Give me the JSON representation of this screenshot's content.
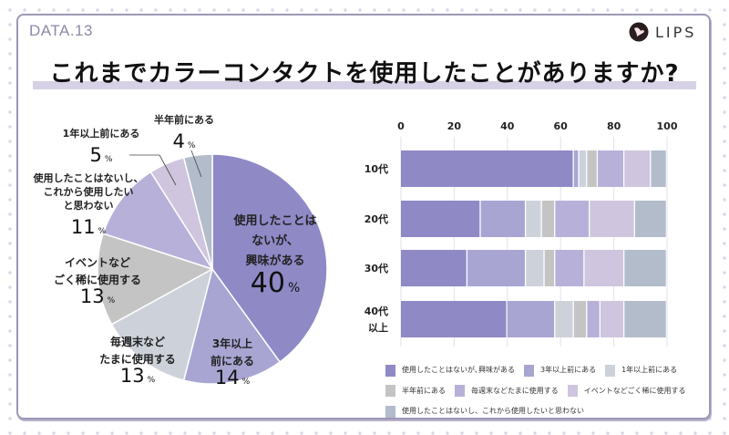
{
  "header": {
    "data_label": "DATA.13",
    "brand": "LIPS",
    "title": "これまでカラーコンタクトを使用したことがありますか?"
  },
  "colors": {
    "brand_accent": "#8e89ac",
    "title_band": "#d6d1e6",
    "categories": [
      "#8f89c6",
      "#a8a5d3",
      "#cdd2da",
      "#c4c4c4",
      "#b7b1d9",
      "#cfc5de",
      "#b3bccb"
    ]
  },
  "chart_data": [
    {
      "type": "pie",
      "title": "これまでカラーコンタクトを使用したことがありますか?",
      "unit": "%",
      "start": "top, clockwise",
      "slices": [
        {
          "label": "使用したことはないが、興味がある",
          "label_lines": [
            "使用したことは",
            "ないが、",
            "興味がある"
          ],
          "value": 40
        },
        {
          "label": "3年以上前にある",
          "label_lines": [
            "3年以上",
            "前にある"
          ],
          "value": 14
        },
        {
          "label": "毎週末などたまに使用する",
          "label_lines": [
            "毎週末など",
            "たまに使用する"
          ],
          "value": 13
        },
        {
          "label": "イベントなどごく稀に使用する",
          "label_lines": [
            "イベントなど",
            "ごく稀に使用する"
          ],
          "value": 13
        },
        {
          "label": "使用したことはないし、これから使用したいと思わない",
          "label_lines": [
            "使用したことはないし、",
            "これから使用したい",
            "と思わない"
          ],
          "value": 11
        },
        {
          "label": "1年以上前にある",
          "label_lines": [
            "1年以上前にある"
          ],
          "value": 5
        },
        {
          "label": "半年前にある",
          "label_lines": [
            "半年前にある"
          ],
          "value": 4
        }
      ]
    },
    {
      "type": "bar",
      "orientation": "horizontal",
      "stacked": true,
      "categories": [
        "10代",
        "20代",
        "30代",
        "40代以上"
      ],
      "category_lines": [
        [
          "10代"
        ],
        [
          "20代"
        ],
        [
          "30代"
        ],
        [
          "40代",
          "以上"
        ]
      ],
      "xlim": [
        0,
        100
      ],
      "xticks": [
        0,
        20,
        40,
        60,
        80,
        100
      ],
      "grid": true,
      "legend_position": "bottom",
      "series": [
        {
          "name": "使用したことはないが､興味がある",
          "values": [
            65,
            30,
            25,
            40
          ]
        },
        {
          "name": "3年以上前にある",
          "values": [
            2,
            17,
            22,
            18
          ]
        },
        {
          "name": "1年以上前にある",
          "values": [
            3,
            6,
            7,
            7
          ]
        },
        {
          "name": "半年前にある",
          "values": [
            4,
            5,
            4,
            5
          ]
        },
        {
          "name": "毎週末などたまに使用する",
          "values": [
            10,
            13,
            11,
            5
          ]
        },
        {
          "name": "イベントなどごく稀に使用する",
          "values": [
            10,
            17,
            15,
            9
          ]
        },
        {
          "name": "使用したことはないし、これから使用したいと思わない",
          "values": [
            6,
            12,
            16,
            16
          ]
        }
      ]
    }
  ]
}
